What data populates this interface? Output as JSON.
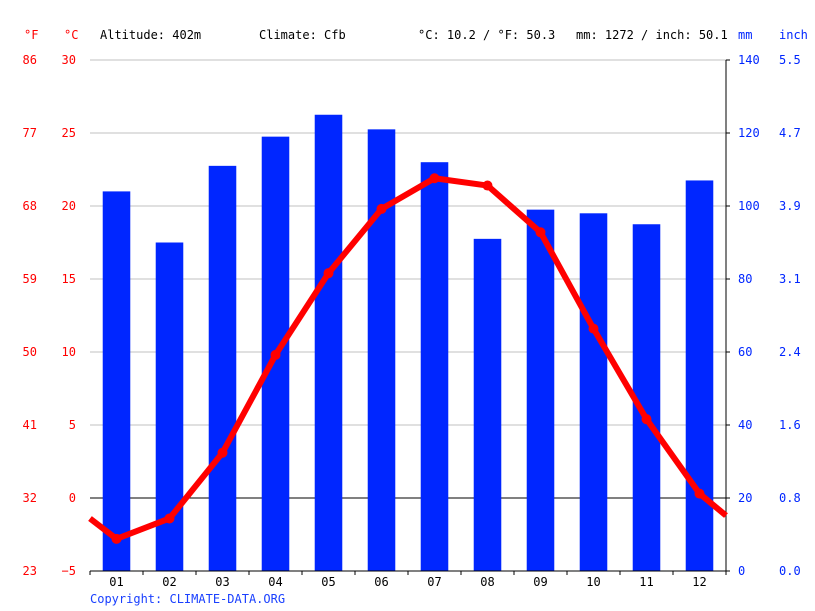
{
  "header": {
    "unit_f": "°F",
    "unit_c": "°C",
    "altitude": "Altitude: 402m",
    "climate": "Climate: Cfb",
    "avg_temp": "°C: 10.2 / °F: 50.3",
    "precip_total": "mm: 1272 / inch: 50.1",
    "unit_mm": "mm",
    "unit_inch": "inch"
  },
  "copyright": "Copyright: CLIMATE-DATA.ORG",
  "colors": {
    "temperature": "#ff0000",
    "precipitation": "#0026ff",
    "grid": "#c0c0c0",
    "zero_line": "#000000",
    "copyright": "#1a40ff"
  },
  "chart_data": {
    "type": "bar",
    "categories": [
      "01",
      "02",
      "03",
      "04",
      "05",
      "06",
      "07",
      "08",
      "09",
      "10",
      "11",
      "12"
    ],
    "series": [
      {
        "type": "bar",
        "axis": "right_mm",
        "values": [
          104,
          90,
          111,
          119,
          125,
          121,
          112,
          91,
          99,
          98,
          95,
          107
        ]
      },
      {
        "type": "line",
        "axis": "left_c",
        "values": [
          -2.8,
          -1.4,
          3.1,
          9.8,
          15.4,
          19.8,
          21.9,
          21.4,
          18.2,
          11.6,
          5.4,
          0.3
        ],
        "edge_values": [
          -1.4,
          -1.2
        ]
      }
    ],
    "left_c_axis": {
      "ticks": [
        "30",
        "25",
        "20",
        "15",
        "10",
        "5",
        "0",
        "−5"
      ],
      "ylim": [
        -5,
        30
      ]
    },
    "left_f_axis": {
      "ticks": [
        "86",
        "77",
        "68",
        "59",
        "50",
        "41",
        "32",
        "23"
      ]
    },
    "right_mm_axis": {
      "ticks": [
        "140",
        "120",
        "100",
        "80",
        "60",
        "40",
        "20",
        "0"
      ],
      "ylim": [
        0,
        140
      ]
    },
    "right_inch_axis": {
      "ticks": [
        "5.5",
        "4.7",
        "3.9",
        "3.1",
        "2.4",
        "1.6",
        "0.8",
        "0.0"
      ]
    },
    "grid": true
  }
}
